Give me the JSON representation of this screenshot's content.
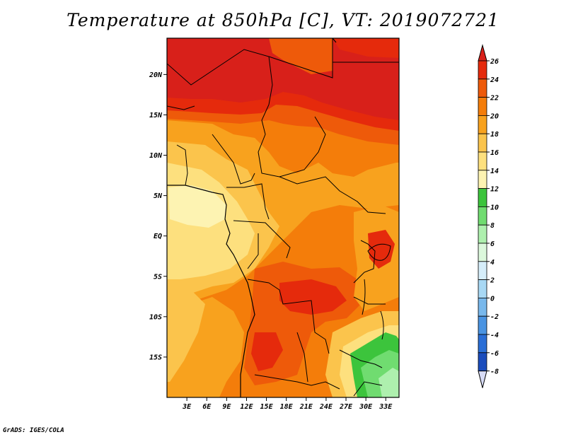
{
  "title": "Temperature at 850hPa [C], VT: 2019072721",
  "credit": "GrADS: IGES/COLA",
  "map": {
    "lat_ticks": [
      {
        "lat": 20,
        "label": "20N"
      },
      {
        "lat": 15,
        "label": "15N"
      },
      {
        "lat": 10,
        "label": "10N"
      },
      {
        "lat": 5,
        "label": "5N"
      },
      {
        "lat": 0,
        "label": "EQ"
      },
      {
        "lat": -5,
        "label": "5S"
      },
      {
        "lat": -10,
        "label": "10S"
      },
      {
        "lat": -15,
        "label": "15S"
      }
    ],
    "lon_ticks": [
      {
        "lon": 3,
        "label": "3E"
      },
      {
        "lon": 6,
        "label": "6E"
      },
      {
        "lon": 9,
        "label": "9E"
      },
      {
        "lon": 12,
        "label": "12E"
      },
      {
        "lon": 15,
        "label": "15E"
      },
      {
        "lon": 18,
        "label": "18E"
      },
      {
        "lon": 21,
        "label": "21E"
      },
      {
        "lon": 24,
        "label": "24E"
      },
      {
        "lon": 27,
        "label": "27E"
      },
      {
        "lon": 30,
        "label": "30E"
      },
      {
        "lon": 33,
        "label": "33E"
      }
    ],
    "lon_range": [
      0,
      35
    ],
    "lat_range": [
      -20,
      24.5
    ]
  },
  "colorbar": {
    "labels": [
      "26",
      "24",
      "22",
      "20",
      "18",
      "16",
      "14",
      "12",
      "10",
      "8",
      "6",
      "4",
      "2",
      "0",
      "-2",
      "-4",
      "-6",
      "-8"
    ],
    "colors": {
      "above_26": "#d8201a",
      "24_26": "#e52a0c",
      "22_24": "#ee5a0a",
      "20_22": "#f47d0a",
      "18_20": "#f8a21e",
      "16_18": "#fbc44c",
      "14_16": "#fde07e",
      "12_14": "#fdf3b2",
      "10_12": "#3cc43c",
      "8_10": "#70dc70",
      "6_8": "#aef0ae",
      "4_6": "#dcf8dc",
      "2_4": "#d6eefa",
      "0_2": "#a8d8f4",
      "m2_0": "#78b8ec",
      "m4_m2": "#4a94e2",
      "m6_m4": "#2a6ed6",
      "m8_m6": "#1a4cbc",
      "below_m8_top": "#10309a",
      "below_m8": "#0a1a6e",
      "lowest_tri": "#d8dcf6"
    }
  }
}
